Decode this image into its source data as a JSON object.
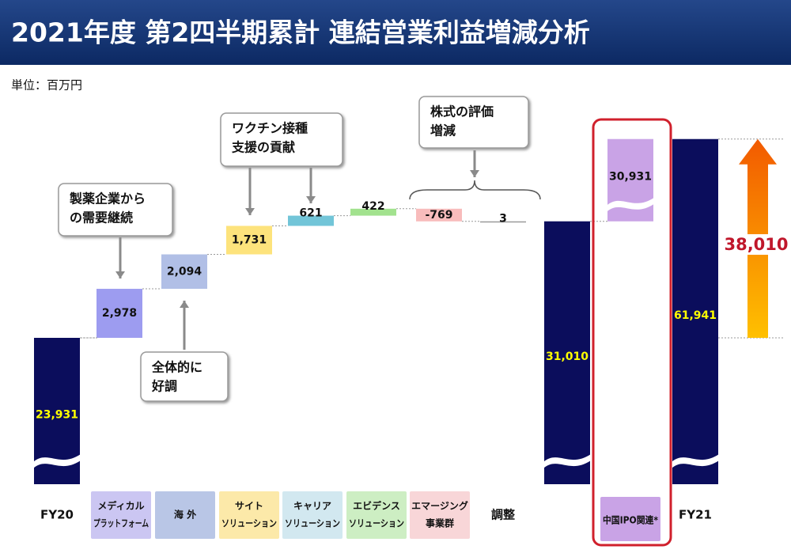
{
  "chart_data": {
    "type": "waterfall",
    "title": "2021年度 第2四半期累計 連結営業利益増減分析",
    "unit": "単位：百万円",
    "bars": [
      {
        "label": [
          "FY20"
        ],
        "value": 23931,
        "value_label": "23,931",
        "color": "#0b0d5c",
        "total": true
      },
      {
        "label": [
          "メディカル",
          "プラットフォーム"
        ],
        "value": 2978,
        "value_label": "2,978",
        "color": "#9d9cf0",
        "label_color": "#cbc6f2"
      },
      {
        "label": [
          "海 外"
        ],
        "value": 2094,
        "value_label": "2,094",
        "color": "#b1bfe6",
        "label_color": "#b9c6e6"
      },
      {
        "label": [
          "サイト",
          "ソリューション"
        ],
        "value": 1731,
        "value_label": "1,731",
        "color": "#fde37c",
        "label_color": "#fce9a9"
      },
      {
        "label": [
          "キャリア",
          "ソリューション"
        ],
        "value": 621,
        "color": "#72c5d8",
        "label_color": "#d2e8f0"
      },
      {
        "label": [
          "エビデンス",
          "ソリューション"
        ],
        "value": 422,
        "color": "#a2e28e",
        "label_color": "#cdeec3"
      },
      {
        "label": [
          "エマージング",
          "事業群"
        ],
        "value": -769,
        "color": "#f8bcbc",
        "label_color": "#f8d6d8"
      },
      {
        "label": [
          "調整"
        ],
        "value": 3,
        "color": "#9a9a9a"
      },
      {
        "label": null,
        "value": 31010,
        "value_label": "31,010",
        "color": "#0b0d5c",
        "total": true
      },
      {
        "label": [
          "中国IPO関連*"
        ],
        "value": 30931,
        "value_label": "30,931",
        "color": "#c9a3e6",
        "label_color": "#c9a3e6",
        "broken": true
      },
      {
        "label": [
          "FY21"
        ],
        "value": 61941,
        "value_label": "61,941",
        "color": "#0b0d5c",
        "total": true
      }
    ],
    "change": {
      "value": 38010,
      "value_label": "38,010"
    },
    "annotations": [
      {
        "lines": [
          "製薬企業から",
          "の需要継続"
        ]
      },
      {
        "lines": [
          "全体的に",
          "好調"
        ]
      },
      {
        "lines": [
          "ワクチン接種",
          "支援の貢献"
        ]
      },
      {
        "lines": [
          "株式の評価",
          "増減"
        ]
      }
    ]
  }
}
